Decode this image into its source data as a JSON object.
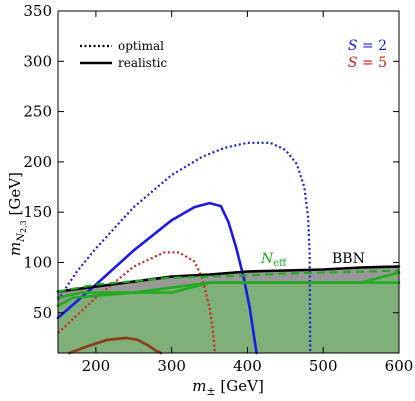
{
  "chart_data": {
    "type": "line",
    "xlabel": "m± [GeV]",
    "ylabel": "m_N2,3 [GeV]",
    "xlim": [
      150,
      600
    ],
    "ylim": [
      10,
      350
    ],
    "xticks": [
      200,
      300,
      400,
      500,
      600
    ],
    "yticks": [
      50,
      100,
      150,
      200,
      250,
      300,
      350
    ],
    "legend": {
      "placement": "top-left",
      "entries": [
        {
          "label": "optimal",
          "style": "dotted"
        },
        {
          "label": "realistic",
          "style": "solid"
        }
      ]
    },
    "s_labels": [
      {
        "text": "S = 2",
        "color": "#1a1ae6",
        "placement": "top-right"
      },
      {
        "text": "S = 5",
        "color": "#d81b1b",
        "placement": "top-right"
      }
    ],
    "annotations": [
      {
        "text": "N_eff",
        "color": "#22aa22",
        "x": 414,
        "y": 103
      },
      {
        "text": "BBN",
        "color": "#000000",
        "x": 515,
        "y": 103
      }
    ],
    "regions": [
      {
        "name": "BBN excluded",
        "fill": "#999999",
        "points": [
          [
            150,
            10
          ],
          [
            150,
            71
          ],
          [
            250,
            81
          ],
          [
            300,
            86
          ],
          [
            350,
            88
          ],
          [
            400,
            91
          ],
          [
            450,
            92
          ],
          [
            500,
            93
          ],
          [
            550,
            95
          ],
          [
            600,
            96
          ],
          [
            600,
            10
          ]
        ]
      },
      {
        "name": "Neff excluded",
        "fill": "#7fb07a",
        "points": [
          [
            150,
            10
          ],
          [
            150,
            57
          ],
          [
            170,
            65
          ],
          [
            350,
            80
          ],
          [
            550,
            80
          ],
          [
            600,
            90
          ],
          [
            600,
            10
          ]
        ]
      }
    ],
    "series": [
      {
        "name": "S = 2 optimal",
        "color": "#1a1ae6",
        "dash": "dotted",
        "x": [
          150,
          175,
          200,
          250,
          300,
          340,
          370,
          400,
          430,
          450,
          465,
          475,
          480,
          482,
          483
        ],
        "y": [
          63,
          91,
          114,
          155,
          187,
          205,
          214,
          219,
          219,
          212,
          198,
          175,
          145,
          110,
          10
        ]
      },
      {
        "name": "S = 2 realistic",
        "color": "#1a1ae6",
        "dash": "solid",
        "x": [
          150,
          200,
          250,
          300,
          330,
          350,
          365,
          375,
          385,
          395,
          403,
          408,
          411,
          412
        ],
        "y": [
          45,
          78,
          112,
          142,
          155,
          159,
          156,
          140,
          115,
          85,
          55,
          30,
          15,
          10
        ]
      },
      {
        "name": "S = 5 optimal",
        "color": "#d81b1b",
        "dash": "dotted",
        "x": [
          150,
          200,
          250,
          290,
          310,
          330,
          340,
          345,
          350,
          354,
          356,
          357
        ],
        "y": [
          30,
          65,
          96,
          110,
          110,
          101,
          85,
          70,
          55,
          35,
          20,
          10
        ]
      },
      {
        "name": "S = 5 realistic",
        "color": "#8b3a1a",
        "dash": "solid",
        "x": [
          165,
          190,
          215,
          240,
          255,
          268,
          280,
          286
        ],
        "y": [
          10,
          17,
          23,
          25,
          23,
          18,
          12,
          10
        ]
      },
      {
        "name": "BBN boundary",
        "color": "#000000",
        "dash": "solid",
        "x": [
          150,
          200,
          250,
          300,
          350,
          400,
          450,
          500,
          550,
          600
        ],
        "y": [
          71,
          76,
          81,
          86,
          88,
          91,
          92,
          93,
          95,
          96
        ]
      },
      {
        "name": "Neff dashed",
        "color": "#22aa22",
        "dash": "dashed",
        "x": [
          150,
          200,
          300,
          400,
          450,
          500,
          560,
          600
        ],
        "y": [
          71,
          78,
          85,
          87,
          89,
          90,
          91,
          92
        ]
      },
      {
        "name": "Neff solid upper",
        "color": "#22aa22",
        "dash": "solid",
        "x": [
          150,
          180,
          250,
          300,
          350,
          400,
          500,
          600
        ],
        "y": [
          65,
          70,
          70,
          70,
          80,
          80,
          80,
          80
        ]
      },
      {
        "name": "Neff solid lower",
        "color": "#22aa22",
        "dash": "solid",
        "x": [
          150,
          170,
          250,
          350,
          450,
          550,
          600
        ],
        "y": [
          57,
          65,
          70,
          80,
          80,
          80,
          90
        ]
      }
    ]
  }
}
